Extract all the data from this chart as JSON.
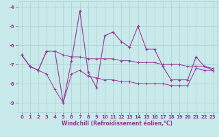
{
  "xlabel": "Windchill (Refroidissement éolien,°C)",
  "x": [
    0,
    1,
    2,
    3,
    4,
    5,
    6,
    7,
    8,
    9,
    10,
    11,
    12,
    13,
    14,
    15,
    16,
    17,
    18,
    19,
    20,
    21,
    22,
    23
  ],
  "y_main": [
    -6.5,
    -7.1,
    -7.3,
    -6.3,
    -6.3,
    -9.0,
    -6.8,
    -4.2,
    -7.4,
    -8.2,
    -5.5,
    -5.3,
    -5.8,
    -6.1,
    -5.0,
    -6.2,
    -6.2,
    -7.1,
    -7.8,
    -7.8,
    -7.8,
    -6.6,
    -7.1,
    -7.3
  ],
  "y_upper": [
    -6.5,
    -7.1,
    -7.3,
    -6.3,
    -6.3,
    -6.5,
    -6.6,
    -6.6,
    -6.7,
    -6.7,
    -6.7,
    -6.7,
    -6.8,
    -6.8,
    -6.9,
    -6.9,
    -6.9,
    -7.0,
    -7.0,
    -7.0,
    -7.1,
    -7.1,
    -7.1,
    -7.2
  ],
  "y_lower": [
    -6.5,
    -7.1,
    -7.3,
    -7.5,
    -8.3,
    -9.0,
    -7.5,
    -7.3,
    -7.6,
    -7.7,
    -7.8,
    -7.8,
    -7.9,
    -7.9,
    -8.0,
    -8.0,
    -8.0,
    -8.0,
    -8.1,
    -8.1,
    -8.1,
    -7.2,
    -7.3,
    -7.3
  ],
  "line_color": "#993399",
  "bg_color": "#c8eaea",
  "grid_color": "#aad0d0",
  "ylim": [
    -9.5,
    -3.7
  ],
  "yticks": [
    -9,
    -8,
    -7,
    -6,
    -5,
    -4
  ],
  "xticks": [
    0,
    1,
    2,
    3,
    4,
    5,
    6,
    7,
    8,
    9,
    10,
    11,
    12,
    13,
    14,
    15,
    16,
    17,
    18,
    19,
    20,
    21,
    22,
    23
  ]
}
